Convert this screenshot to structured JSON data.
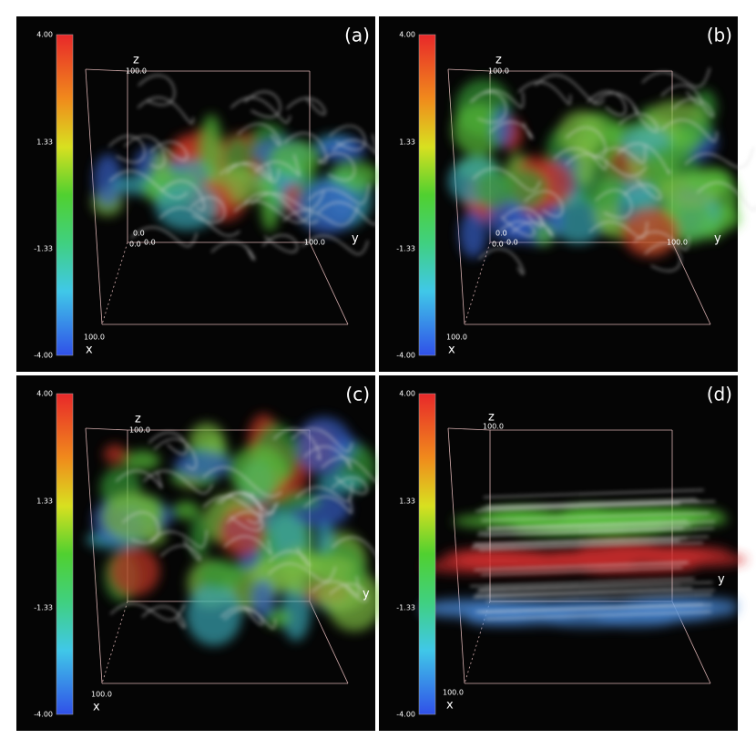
{
  "panels": [
    {
      "label": "(a)",
      "colorbar_ticks": [
        "4.00",
        "1.33",
        "-1.33",
        "-4.00"
      ],
      "axis_texts": [
        "z",
        "100.0",
        "0.0",
        "0.0",
        "0.0",
        "100.0",
        "y",
        "100.0",
        "x"
      ]
    },
    {
      "label": "(b)",
      "colorbar_ticks": [
        "4.00",
        "1.33",
        "-1.33",
        "-4.00"
      ],
      "axis_texts": [
        "z",
        "100.0",
        "0.0",
        "0.0",
        "0.0",
        "100.0",
        "y",
        "100.0",
        "x"
      ]
    },
    {
      "label": "(c)",
      "colorbar_ticks": [
        "4.00",
        "1.33",
        "-1.33",
        "-4.00"
      ],
      "axis_texts": [
        "z",
        "100.0",
        "y",
        "100.0",
        "x"
      ]
    },
    {
      "label": "(d)",
      "colorbar_ticks": [
        "4.00",
        "1.33",
        "-1.33",
        "-4.00"
      ],
      "axis_texts": [
        "z",
        "100.0",
        "y",
        "100.0",
        "x"
      ]
    }
  ]
}
